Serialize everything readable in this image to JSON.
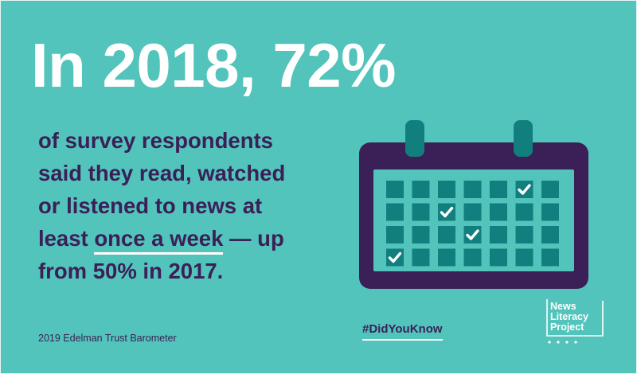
{
  "headline": "In 2018, 72%",
  "body": {
    "line1": "of survey respondents",
    "line2": "said they read, watched",
    "line3": "or listened to news at",
    "line4_prefix": "least ",
    "line4_underlined": "once a week",
    "line4_suffix": " — up",
    "line5": "from 50% in 2017."
  },
  "source": "2019 Edelman Trust Barometer",
  "hashtag": "#DidYouKnow",
  "logo": {
    "line1": "News",
    "line2": "Literacy",
    "line3": "Project"
  },
  "calendar": {
    "icon": "calendar-icon",
    "checked_cells": [
      [
        0,
        5
      ],
      [
        1,
        2
      ],
      [
        2,
        3
      ],
      [
        3,
        0
      ]
    ]
  },
  "colors": {
    "background": "#52c4bb",
    "headline": "#ffffff",
    "text": "#3b1f57",
    "calendar_frame": "#3b1f57",
    "calendar_face": "#52c4bb",
    "calendar_cell": "#117f7e",
    "calendar_ring": "#117f7e",
    "check": "#ffffff"
  }
}
